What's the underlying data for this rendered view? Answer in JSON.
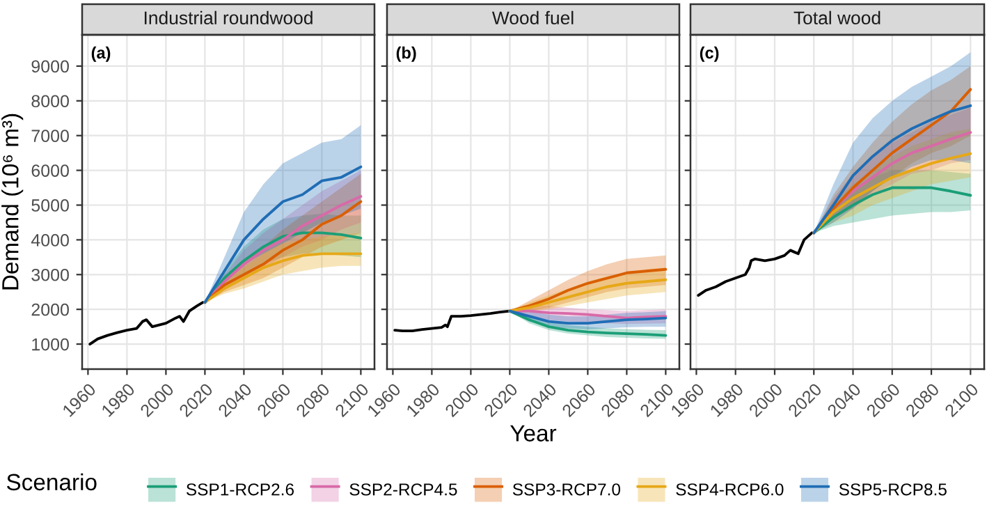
{
  "chart_data": [
    {
      "type": "line",
      "title": "Industrial roundwood",
      "ylabel": "Demand (10⁶ m³)",
      "annotations": [
        "(a)"
      ],
      "legend": "bottom",
      "legend_title": "Scenario",
      "grid": true,
      "xlim": [
        1957,
        2107
      ],
      "ylim": [
        280,
        9900
      ],
      "xticks": [
        1960,
        1980,
        2000,
        2020,
        2040,
        2060,
        2080,
        2100
      ],
      "yticks": [
        1000,
        2000,
        3000,
        4000,
        5000,
        6000,
        7000,
        8000,
        9000
      ],
      "line_style": "solid",
      "series": [
        {
          "color": "#000000",
          "x": [
            1961,
            1965,
            1970,
            1975,
            1980,
            1985,
            1988,
            1990,
            1993,
            2000,
            2005,
            2007,
            2009,
            2012,
            2016,
            2019
          ],
          "values": [
            1000,
            1150,
            1250,
            1330,
            1400,
            1450,
            1650,
            1700,
            1500,
            1600,
            1750,
            1800,
            1650,
            1950,
            2100,
            2200
          ]
        },
        {
          "name": "SSP1-RCP2.6",
          "color": "#1b9e77",
          "x": [
            2020,
            2030,
            2040,
            2050,
            2060,
            2070,
            2080,
            2090,
            2100
          ],
          "values": [
            2200,
            2900,
            3400,
            3800,
            4100,
            4200,
            4200,
            4150,
            4050
          ],
          "lower": [
            2200,
            2700,
            3000,
            3300,
            3500,
            3600,
            3600,
            3550,
            3500
          ],
          "upper": [
            2200,
            3100,
            3800,
            4300,
            4600,
            4700,
            4750,
            4700,
            4700
          ]
        },
        {
          "name": "SSP2-RCP4.5",
          "color": "#d86aa8",
          "x": [
            2020,
            2030,
            2040,
            2050,
            2060,
            2070,
            2080,
            2090,
            2100
          ],
          "values": [
            2200,
            2800,
            3300,
            3700,
            4000,
            4400,
            4700,
            5000,
            5250
          ],
          "lower": [
            2200,
            2600,
            2900,
            3200,
            3500,
            3800,
            4000,
            4300,
            4500
          ],
          "upper": [
            2200,
            3000,
            3700,
            4200,
            4600,
            5000,
            5400,
            5700,
            6000
          ]
        },
        {
          "name": "SSP3-RCP7.0",
          "color": "#d95f02",
          "x": [
            2020,
            2030,
            2040,
            2050,
            2060,
            2070,
            2080,
            2090,
            2100
          ],
          "values": [
            2200,
            2700,
            3000,
            3300,
            3700,
            4000,
            4450,
            4700,
            5100
          ],
          "lower": [
            2200,
            2500,
            2700,
            2900,
            3200,
            3500,
            3800,
            4000,
            4200
          ],
          "upper": [
            2200,
            2900,
            3400,
            3800,
            4300,
            4700,
            5100,
            5500,
            5900
          ]
        },
        {
          "name": "SSP4-RCP6.0",
          "color": "#e6a817",
          "x": [
            2020,
            2030,
            2040,
            2050,
            2060,
            2070,
            2080,
            2090,
            2100
          ],
          "values": [
            2200,
            2600,
            2900,
            3200,
            3400,
            3550,
            3600,
            3600,
            3600
          ],
          "lower": [
            2200,
            2450,
            2600,
            2800,
            3000,
            3100,
            3200,
            3250,
            3250
          ],
          "upper": [
            2200,
            2800,
            3200,
            3600,
            3900,
            4000,
            4100,
            4150,
            4200
          ]
        },
        {
          "name": "SSP5-RCP8.5",
          "color": "#1f6db5",
          "x": [
            2020,
            2030,
            2040,
            2050,
            2060,
            2070,
            2080,
            2090,
            2100
          ],
          "values": [
            2200,
            3100,
            4000,
            4600,
            5100,
            5300,
            5700,
            5800,
            6100
          ],
          "lower": [
            2200,
            2800,
            3300,
            3600,
            3900,
            4200,
            4500,
            4700,
            4900
          ],
          "upper": [
            2200,
            3500,
            4800,
            5600,
            6200,
            6500,
            6800,
            6900,
            7300
          ]
        }
      ]
    },
    {
      "type": "line",
      "title": "Wood fuel",
      "xlabel": "Year",
      "annotations": [
        "(b)"
      ],
      "grid": true,
      "tick_labels": "x",
      "xlim": [
        1957,
        2107
      ],
      "ylim": [
        280,
        9900
      ],
      "xticks": [
        1960,
        1980,
        2000,
        2020,
        2040,
        2060,
        2080,
        2100
      ],
      "yticks": [
        1000,
        2000,
        3000,
        4000,
        5000,
        6000,
        7000,
        8000,
        9000
      ],
      "line_style": "solid",
      "series": [
        {
          "color": "#000000",
          "x": [
            1961,
            1965,
            1970,
            1975,
            1980,
            1985,
            1987,
            1988,
            1990,
            1995,
            2000,
            2005,
            2010,
            2015,
            2020
          ],
          "values": [
            1400,
            1380,
            1380,
            1420,
            1450,
            1480,
            1550,
            1500,
            1800,
            1800,
            1820,
            1850,
            1880,
            1920,
            1950
          ]
        },
        {
          "color": "#1b9e77",
          "x": [
            2020,
            2030,
            2040,
            2050,
            2060,
            2070,
            2080,
            2090,
            2100
          ],
          "values": [
            1950,
            1700,
            1500,
            1400,
            1350,
            1320,
            1300,
            1280,
            1250
          ],
          "lower": [
            1950,
            1600,
            1400,
            1300,
            1250,
            1200,
            1180,
            1160,
            1150
          ],
          "upper": [
            1950,
            1800,
            1650,
            1550,
            1500,
            1450,
            1430,
            1410,
            1400
          ]
        },
        {
          "color": "#d86aa8",
          "x": [
            2020,
            2030,
            2040,
            2050,
            2060,
            2070,
            2080,
            2090,
            2100
          ],
          "values": [
            1950,
            1950,
            1900,
            1880,
            1850,
            1800,
            1750,
            1780,
            1800
          ],
          "lower": [
            1950,
            1800,
            1700,
            1650,
            1620,
            1600,
            1580,
            1590,
            1600
          ],
          "upper": [
            1950,
            2100,
            2100,
            2050,
            2000,
            1980,
            1950,
            1980,
            2000
          ]
        },
        {
          "color": "#d95f02",
          "x": [
            2020,
            2030,
            2040,
            2050,
            2060,
            2070,
            2080,
            2090,
            2100
          ],
          "values": [
            1950,
            2100,
            2300,
            2550,
            2750,
            2900,
            3050,
            3100,
            3150
          ],
          "lower": [
            1950,
            1950,
            2050,
            2200,
            2350,
            2500,
            2600,
            2650,
            2700
          ],
          "upper": [
            1950,
            2250,
            2550,
            2850,
            3100,
            3300,
            3450,
            3500,
            3550
          ]
        },
        {
          "color": "#e6a817",
          "x": [
            2020,
            2030,
            2040,
            2050,
            2060,
            2070,
            2080,
            2090,
            2100
          ],
          "values": [
            1950,
            2050,
            2200,
            2350,
            2500,
            2650,
            2750,
            2800,
            2850
          ],
          "lower": [
            1950,
            1950,
            2000,
            2100,
            2200,
            2300,
            2400,
            2450,
            2500
          ],
          "upper": [
            1950,
            2200,
            2400,
            2600,
            2800,
            2950,
            3050,
            3150,
            3200
          ]
        },
        {
          "color": "#1f6db5",
          "x": [
            2020,
            2030,
            2040,
            2050,
            2060,
            2070,
            2080,
            2090,
            2100
          ],
          "values": [
            1950,
            1800,
            1650,
            1600,
            1600,
            1650,
            1700,
            1720,
            1750
          ],
          "lower": [
            1950,
            1650,
            1500,
            1450,
            1420,
            1450,
            1480,
            1500,
            1500
          ],
          "upper": [
            1950,
            1950,
            1850,
            1800,
            1800,
            1850,
            1900,
            1920,
            1950
          ]
        }
      ]
    },
    {
      "type": "line",
      "title": "Total wood",
      "annotations": [
        "(c)"
      ],
      "grid": true,
      "tick_labels": "x",
      "xlim": [
        1957,
        2107
      ],
      "ylim": [
        280,
        9900
      ],
      "xticks": [
        1960,
        1980,
        2000,
        2020,
        2040,
        2060,
        2080,
        2100
      ],
      "yticks": [
        1000,
        2000,
        3000,
        4000,
        5000,
        6000,
        7000,
        8000,
        9000
      ],
      "line_style": "solid",
      "series": [
        {
          "color": "#000000",
          "x": [
            1961,
            1965,
            1970,
            1975,
            1980,
            1985,
            1987,
            1988,
            1990,
            1995,
            2000,
            2005,
            2008,
            2010,
            2012,
            2015,
            2019
          ],
          "values": [
            2400,
            2550,
            2650,
            2800,
            2900,
            3000,
            3200,
            3400,
            3450,
            3400,
            3450,
            3550,
            3700,
            3650,
            3600,
            4000,
            4200
          ]
        },
        {
          "color": "#1b9e77",
          "x": [
            2020,
            2030,
            2040,
            2050,
            2060,
            2070,
            2080,
            2090,
            2100
          ],
          "values": [
            4200,
            4650,
            5000,
            5300,
            5500,
            5500,
            5500,
            5400,
            5280
          ],
          "lower": [
            4200,
            4400,
            4500,
            4600,
            4700,
            4750,
            4800,
            4800,
            4850
          ],
          "upper": [
            4200,
            4900,
            5500,
            5800,
            6000,
            6000,
            6000,
            5950,
            5900
          ]
        },
        {
          "color": "#d86aa8",
          "x": [
            2020,
            2030,
            2040,
            2050,
            2060,
            2070,
            2080,
            2090,
            2100
          ],
          "values": [
            4200,
            4900,
            5400,
            5800,
            6200,
            6500,
            6700,
            6900,
            7090
          ],
          "lower": [
            4200,
            4600,
            4900,
            5300,
            5600,
            5900,
            6000,
            6200,
            6300
          ],
          "upper": [
            4200,
            5200,
            5900,
            6400,
            6800,
            7100,
            7400,
            7600,
            7800
          ]
        },
        {
          "color": "#d95f02",
          "x": [
            2020,
            2030,
            2040,
            2050,
            2060,
            2070,
            2080,
            2090,
            2100
          ],
          "values": [
            4200,
            4900,
            5500,
            6000,
            6500,
            6900,
            7300,
            7700,
            8330
          ],
          "lower": [
            4200,
            4600,
            5000,
            5400,
            5800,
            6200,
            6500,
            6700,
            7000
          ],
          "upper": [
            4200,
            5300,
            6100,
            6800,
            7400,
            7900,
            8300,
            8600,
            9000
          ]
        },
        {
          "color": "#e6a817",
          "x": [
            2020,
            2030,
            2040,
            2050,
            2060,
            2070,
            2080,
            2090,
            2100
          ],
          "values": [
            4200,
            4800,
            5200,
            5500,
            5800,
            6000,
            6200,
            6350,
            6480
          ],
          "lower": [
            4200,
            4500,
            4700,
            5000,
            5200,
            5400,
            5600,
            5700,
            5800
          ],
          "upper": [
            4200,
            5100,
            5600,
            6000,
            6400,
            6700,
            6900,
            7100,
            7200
          ]
        },
        {
          "color": "#1f6db5",
          "x": [
            2020,
            2030,
            2040,
            2050,
            2060,
            2070,
            2080,
            2090,
            2100
          ],
          "values": [
            4200,
            5000,
            5850,
            6400,
            6860,
            7200,
            7460,
            7700,
            7860
          ],
          "lower": [
            4200,
            4500,
            4900,
            5400,
            5800,
            6100,
            6300,
            6300,
            6200
          ],
          "upper": [
            4200,
            5600,
            6800,
            7500,
            8000,
            8400,
            8700,
            9000,
            9400
          ]
        }
      ]
    }
  ]
}
